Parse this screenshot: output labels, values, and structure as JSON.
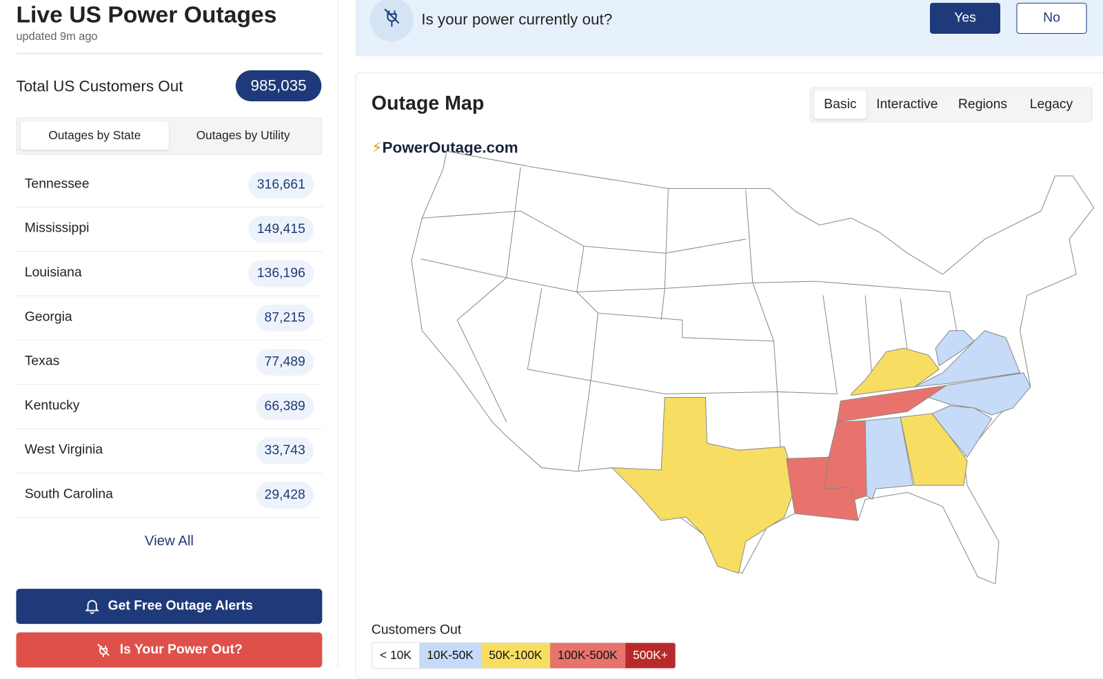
{
  "header": {
    "title": "Live US Power Outages",
    "updated": "updated 9m ago"
  },
  "total": {
    "label": "Total US Customers Out",
    "value": "985,035"
  },
  "tabs": [
    "Outages by State",
    "Outages by Utility"
  ],
  "states": [
    [
      "Tennessee",
      "316,661"
    ],
    [
      "Mississippi",
      "149,415"
    ],
    [
      "Louisiana",
      "136,196"
    ],
    [
      "Georgia",
      "87,215"
    ],
    [
      "Texas",
      "77,489"
    ],
    [
      "Kentucky",
      "66,389"
    ],
    [
      "West Virginia",
      "33,743"
    ],
    [
      "South Carolina",
      "29,428"
    ]
  ],
  "view_all": "View All",
  "buttons": {
    "alerts": "Get Free Outage Alerts",
    "power_out": "Is Your Power Out?"
  },
  "banner": {
    "question": "Is your power currently out?",
    "yes": "Yes",
    "no": "No"
  },
  "map": {
    "title": "Outage Map",
    "tabs": [
      "Basic",
      "Interactive",
      "Regions",
      "Legacy"
    ],
    "brand": "PowerOutage.com",
    "legend_title": "Customers Out",
    "legend": [
      "< 10K",
      "10K-50K",
      "50K-100K",
      "100K-500K",
      "500K+"
    ]
  }
}
